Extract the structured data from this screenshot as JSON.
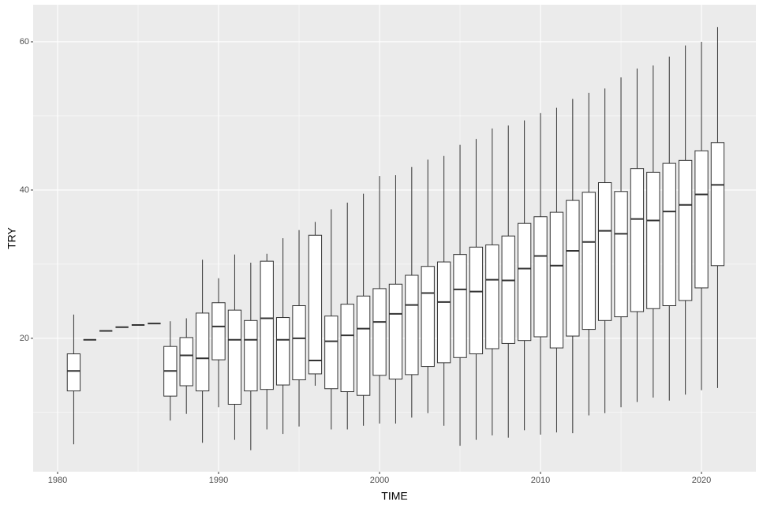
{
  "chart_data": {
    "type": "box",
    "x_label": "TIME",
    "y_label": "TRY",
    "x": [
      1981,
      1982,
      1983,
      1984,
      1985,
      1986,
      1987,
      1988,
      1989,
      1990,
      1991,
      1992,
      1993,
      1994,
      1995,
      1996,
      1997,
      1998,
      1999,
      2000,
      2001,
      2002,
      2003,
      2004,
      2005,
      2006,
      2007,
      2008,
      2009,
      2010,
      2011,
      2012,
      2013,
      2014,
      2015,
      2016,
      2017,
      2018,
      2019,
      2020,
      2021
    ],
    "low": [
      5.7,
      19.8,
      21.0,
      21.5,
      21.8,
      22.0,
      8.9,
      9.8,
      5.9,
      10.7,
      6.3,
      4.9,
      7.7,
      7.1,
      8.1,
      13.6,
      7.7,
      7.7,
      8.2,
      8.5,
      8.5,
      9.3,
      9.9,
      8.2,
      5.5,
      6.3,
      6.9,
      6.6,
      7.6,
      7.0,
      7.3,
      7.2,
      9.6,
      9.9,
      10.7,
      11.4,
      12.0,
      11.6,
      12.4,
      13.0,
      13.3
    ],
    "q1": [
      12.9,
      19.8,
      21.0,
      21.5,
      21.8,
      22.0,
      12.2,
      13.6,
      12.9,
      17.1,
      11.1,
      12.9,
      13.1,
      13.7,
      14.4,
      15.2,
      13.2,
      12.8,
      12.3,
      15.0,
      14.5,
      15.1,
      16.2,
      16.7,
      17.4,
      17.9,
      18.6,
      19.3,
      19.7,
      20.2,
      18.7,
      20.3,
      21.2,
      22.4,
      22.9,
      23.6,
      24.0,
      24.4,
      25.1,
      26.8,
      29.8
    ],
    "median": [
      15.6,
      19.8,
      21.0,
      21.5,
      21.8,
      22.0,
      15.6,
      17.7,
      17.3,
      21.6,
      19.8,
      19.8,
      22.7,
      19.8,
      20.0,
      17.0,
      19.6,
      20.4,
      21.3,
      22.2,
      23.3,
      24.5,
      26.1,
      24.9,
      26.6,
      26.3,
      27.9,
      27.8,
      29.4,
      31.1,
      29.8,
      31.8,
      33.0,
      34.5,
      34.1,
      36.1,
      35.9,
      37.1,
      38.0,
      39.4,
      40.7
    ],
    "q3": [
      17.9,
      19.8,
      21.0,
      21.5,
      21.8,
      22.0,
      18.9,
      20.1,
      23.4,
      24.8,
      23.8,
      22.4,
      30.4,
      22.8,
      24.4,
      33.9,
      23.0,
      24.6,
      25.7,
      26.7,
      27.3,
      28.5,
      29.7,
      30.3,
      31.3,
      32.3,
      32.6,
      33.8,
      35.5,
      36.4,
      37.0,
      38.6,
      39.7,
      41.0,
      39.8,
      42.9,
      42.4,
      43.6,
      44.0,
      45.3,
      46.4
    ],
    "high": [
      23.2,
      19.8,
      21.0,
      21.5,
      21.8,
      22.0,
      22.3,
      22.7,
      30.6,
      28.1,
      31.3,
      30.2,
      31.4,
      33.5,
      34.6,
      35.7,
      37.4,
      38.3,
      39.5,
      41.9,
      42.0,
      43.1,
      44.1,
      44.6,
      46.1,
      46.9,
      48.3,
      48.7,
      49.4,
      50.4,
      51.1,
      52.3,
      53.1,
      53.7,
      55.2,
      56.4,
      56.8,
      58.0,
      59.5,
      60.0,
      62.0
    ],
    "xlim": [
      1978.48,
      2023.38
    ],
    "ylim": [
      2.0,
      65.0
    ],
    "xticks": [
      1980,
      1990,
      2000,
      2010,
      2020
    ],
    "yticks": [
      20,
      40,
      60
    ],
    "grid": true,
    "color": "#333333",
    "fill": "#ffffff",
    "background": "#ebebeb"
  }
}
